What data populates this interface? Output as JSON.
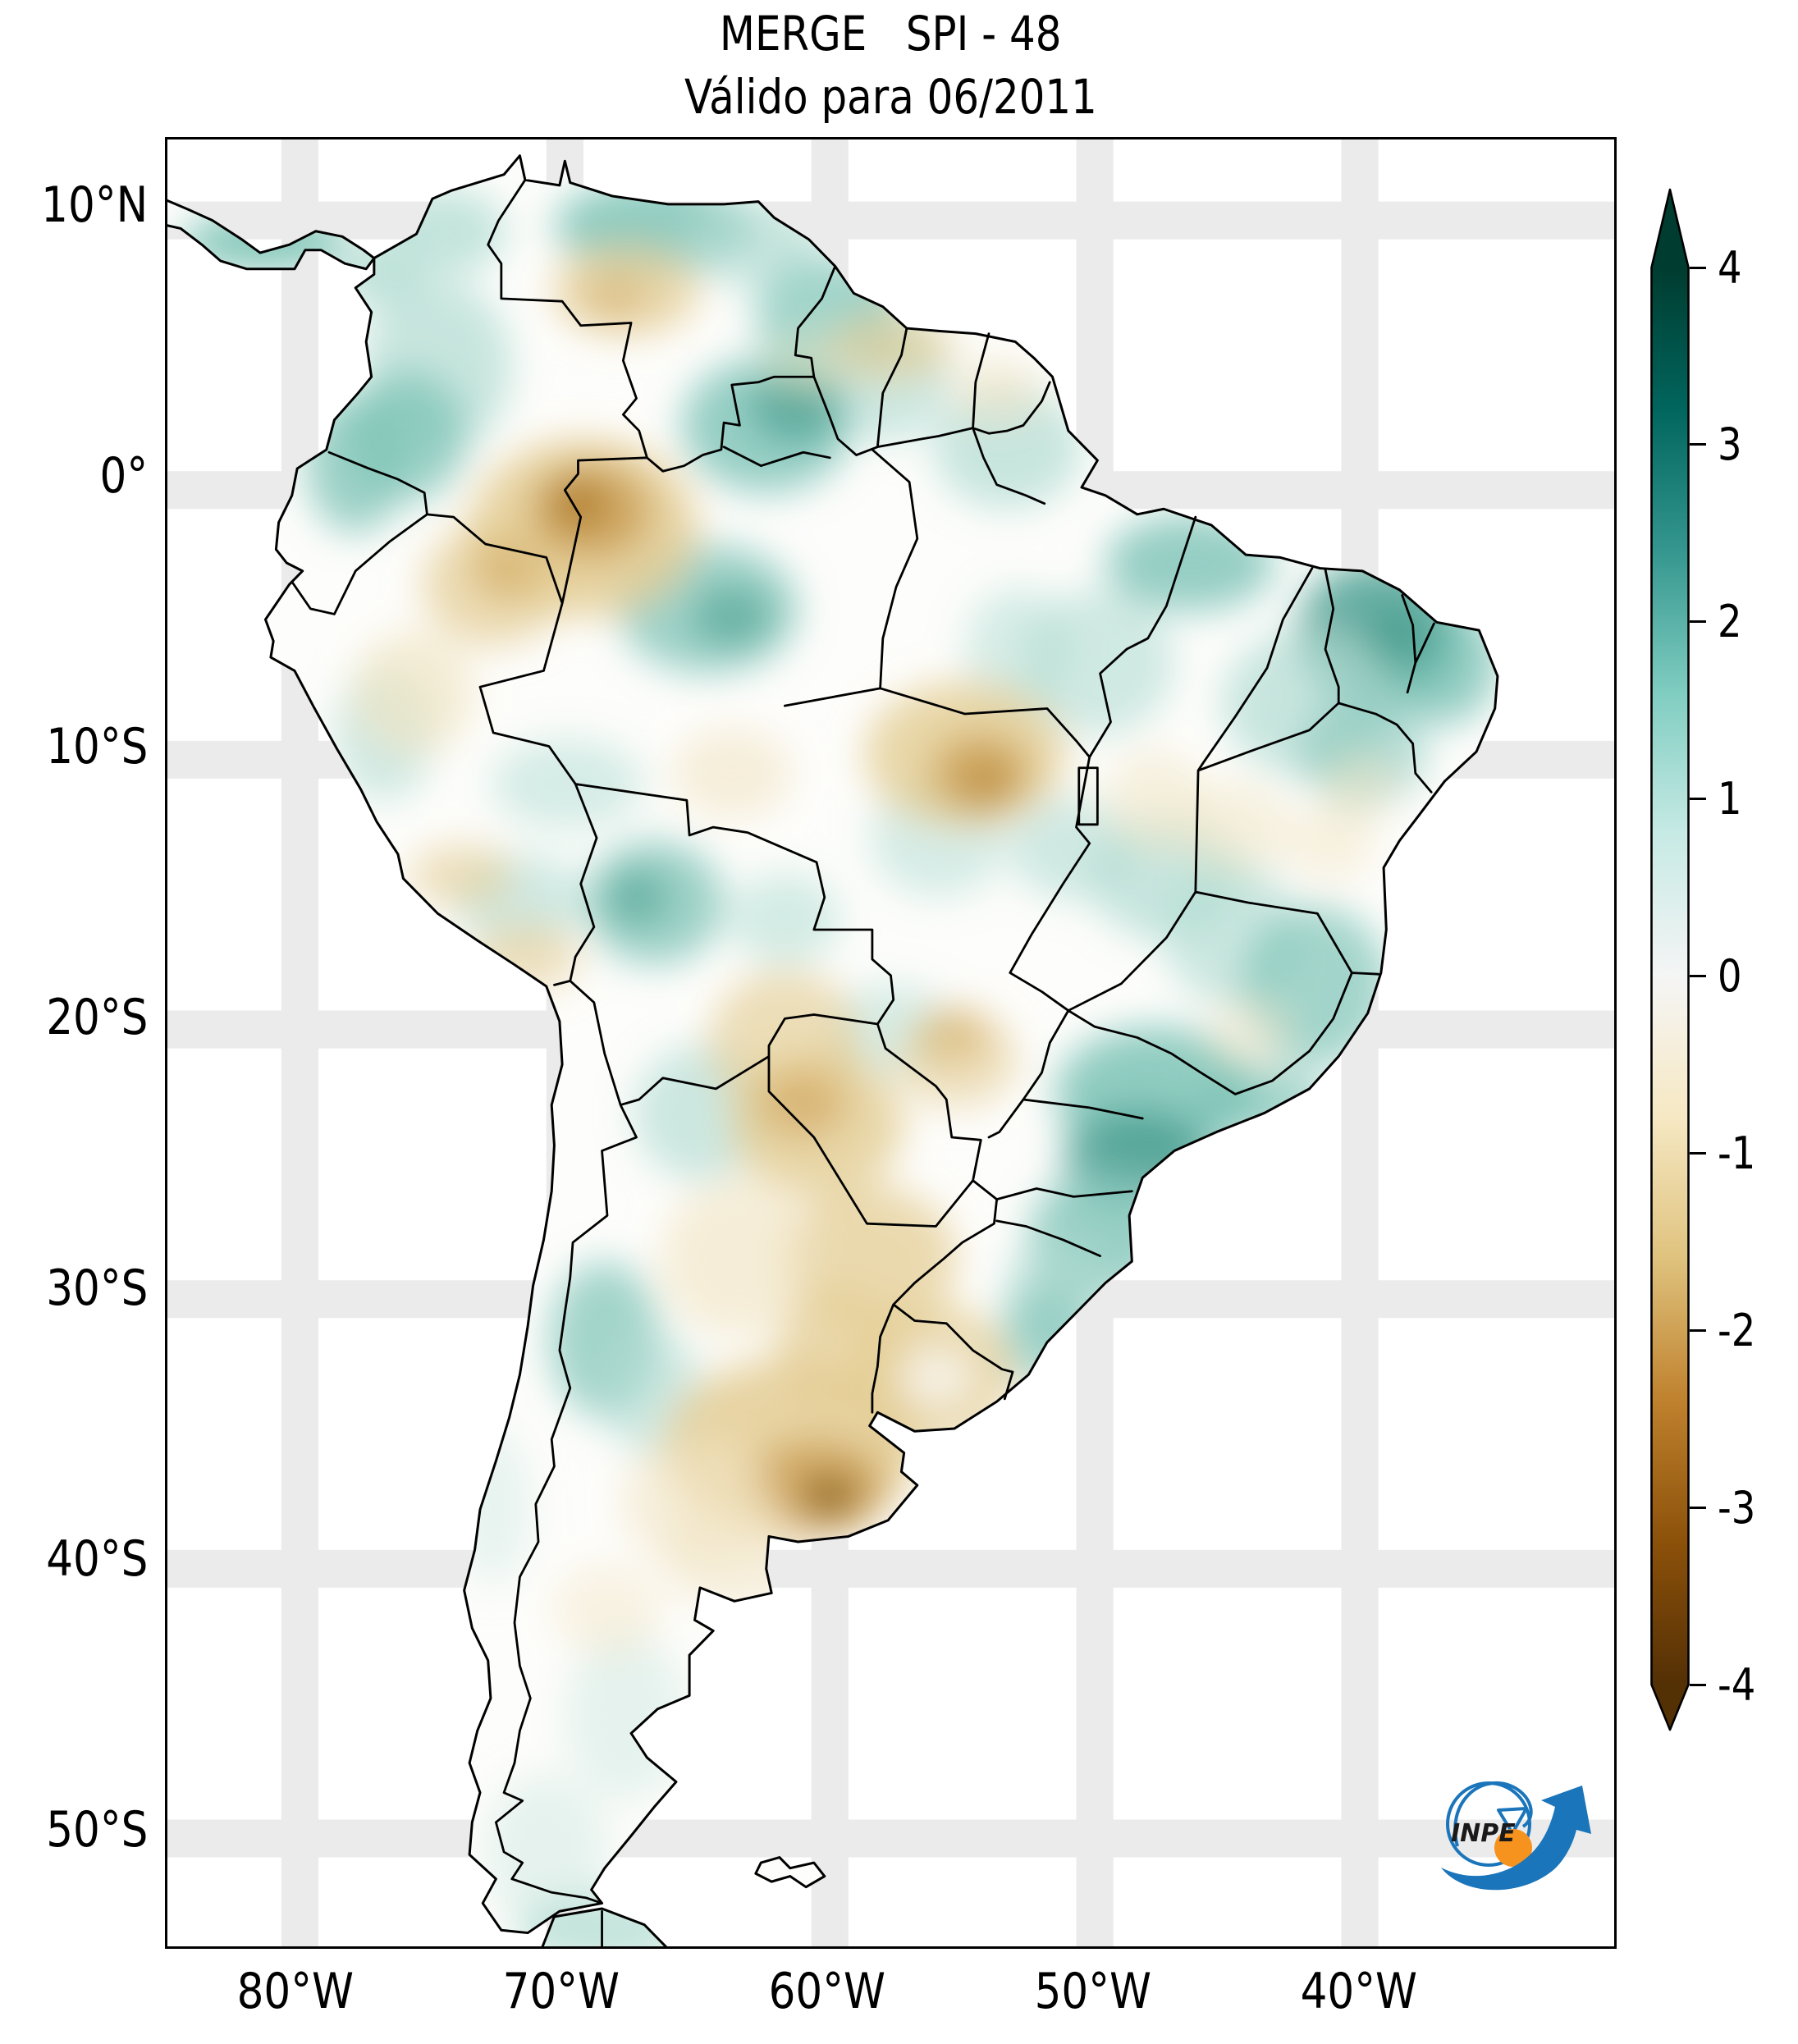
{
  "figure": {
    "title_line1": "MERGE   SPI - 48",
    "title_line2": "Válido para 06/2011"
  },
  "axes": {
    "lat_ticks": [
      "10°N",
      "0°",
      "10°S",
      "20°S",
      "30°S",
      "40°S",
      "50°S"
    ],
    "lon_ticks": [
      "80°W",
      "70°W",
      "60°W",
      "50°W",
      "40°W"
    ]
  },
  "colorbar": {
    "tick_labels": [
      "4",
      "3",
      "2",
      "1",
      "0",
      "-1",
      "-2",
      "-3",
      "-4"
    ],
    "range": [
      -4,
      4
    ],
    "colormap": "BrBG",
    "extend": "both",
    "stops": [
      {
        "value": 4.0,
        "color": "#003c30"
      },
      {
        "value": 3.2,
        "color": "#01665e"
      },
      {
        "value": 2.4,
        "color": "#35978f"
      },
      {
        "value": 1.6,
        "color": "#80cdc1"
      },
      {
        "value": 0.8,
        "color": "#c7eae5"
      },
      {
        "value": 0.0,
        "color": "#f5f5f5"
      },
      {
        "value": -0.8,
        "color": "#f6e8c3"
      },
      {
        "value": -1.6,
        "color": "#dfc27d"
      },
      {
        "value": -2.4,
        "color": "#bf812d"
      },
      {
        "value": -3.2,
        "color": "#8c510a"
      },
      {
        "value": -4.0,
        "color": "#543005"
      }
    ]
  },
  "map": {
    "region": "South America",
    "border_color": "#000000",
    "ocean_color": "#ffffff",
    "land_color": "#fdfdfb",
    "wet_color": "#35978f",
    "dry_color": "#bf812d"
  },
  "logo": {
    "text": "INPE",
    "blue": "#1b75bb",
    "orange": "#f6921e"
  }
}
